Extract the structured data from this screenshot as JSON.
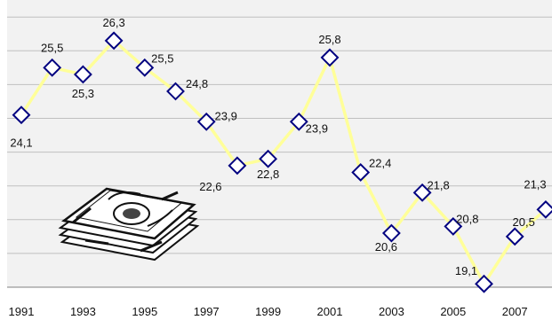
{
  "chart_data": {
    "type": "line",
    "title": "",
    "xlabel": "",
    "ylabel": "",
    "x": [
      1991,
      1992,
      1993,
      1994,
      1995,
      1996,
      1997,
      1998,
      1999,
      2000,
      2001,
      2002,
      2003,
      2004,
      2005,
      2006,
      2007,
      2008
    ],
    "x_tick_labels": [
      "1991",
      "1993",
      "1995",
      "1997",
      "1999",
      "2001",
      "2003",
      "2005",
      "2007"
    ],
    "series": [
      {
        "values": [
          24.1,
          25.5,
          25.3,
          26.3,
          25.5,
          24.8,
          23.9,
          22.6,
          22.8,
          23.9,
          25.8,
          22.4,
          20.6,
          21.8,
          20.8,
          19.1,
          20.5,
          21.3
        ],
        "labels": [
          "24,1",
          "25,5",
          "25,3",
          "26,3",
          "25,5",
          "24,8",
          "23,9",
          "22,6",
          "22,8",
          "23,9",
          "25,8",
          "22,4",
          "20,6",
          "21,8",
          "20,8",
          "19,1",
          "20,5",
          "21,3"
        ]
      }
    ],
    "ylim": [
      19,
      27
    ],
    "grid": true,
    "legend": "none",
    "colors": {
      "line": "#FFFF99",
      "marker_fill": "#FFFFFF",
      "marker_stroke": "#000080",
      "plot_background": "#F2F2F2",
      "gridline": "#C0C0C0"
    }
  },
  "decoration": {
    "icon": "money-stack-icon"
  }
}
